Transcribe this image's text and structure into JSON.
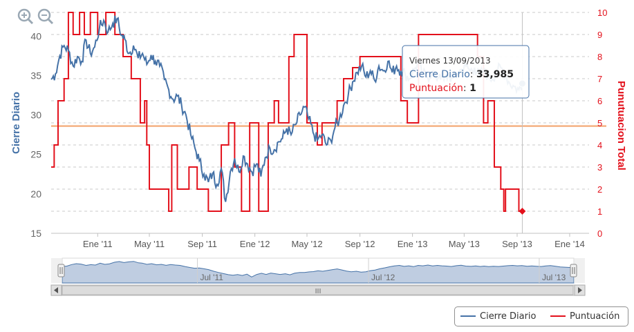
{
  "chart_data": {
    "type": "line",
    "title": "",
    "colors": {
      "cierre": "#4572a7",
      "puntuacion": "#e3101b",
      "threshold": "#f4b183",
      "y_left_label": "#4572a7",
      "y_right_label": "#e3101b"
    },
    "y_left": {
      "label": "Cierre Diario",
      "min": 15,
      "max": 43,
      "ticks": [
        15,
        20,
        25,
        30,
        35,
        40
      ]
    },
    "y_right": {
      "label": "Punutuacion Total",
      "min": 0,
      "max": 10,
      "ticks": [
        0,
        1,
        2,
        3,
        4,
        5,
        6,
        7,
        8,
        9,
        10
      ]
    },
    "x_range": [
      "2010-09-15",
      "2014-02-15"
    ],
    "x_ticks": [
      {
        "label": "Ene '11",
        "date": "2011-01-01"
      },
      {
        "label": "May '11",
        "date": "2011-05-01"
      },
      {
        "label": "Sep '11",
        "date": "2011-09-01"
      },
      {
        "label": "Ene '12",
        "date": "2012-01-01"
      },
      {
        "label": "May '12",
        "date": "2012-05-01"
      },
      {
        "label": "Sep '12",
        "date": "2012-09-01"
      },
      {
        "label": "Ene '13",
        "date": "2013-01-01"
      },
      {
        "label": "May '13",
        "date": "2013-05-01"
      },
      {
        "label": "Sep '13",
        "date": "2013-09-01"
      },
      {
        "label": "Ene '14",
        "date": "2014-01-01"
      }
    ],
    "threshold_line": 28.6,
    "series": [
      {
        "name": "Cierre Diario",
        "points": [
          [
            "2010-09-15",
            34.5
          ],
          [
            "2010-09-25",
            35.2
          ],
          [
            "2010-10-05",
            37.5
          ],
          [
            "2010-10-15",
            38.8
          ],
          [
            "2010-10-25",
            38.2
          ],
          [
            "2010-11-05",
            36.2
          ],
          [
            "2010-11-15",
            37.4
          ],
          [
            "2010-11-25",
            36.8
          ],
          [
            "2010-12-05",
            39.5
          ],
          [
            "2010-12-15",
            37.8
          ],
          [
            "2010-12-25",
            38.6
          ],
          [
            "2011-01-05",
            41.0
          ],
          [
            "2011-01-15",
            42.0
          ],
          [
            "2011-01-25",
            40.5
          ],
          [
            "2011-02-05",
            41.6
          ],
          [
            "2011-02-15",
            42.2
          ],
          [
            "2011-02-25",
            40.1
          ],
          [
            "2011-03-05",
            39.6
          ],
          [
            "2011-03-15",
            37.8
          ],
          [
            "2011-03-25",
            38.8
          ],
          [
            "2011-04-05",
            37.2
          ],
          [
            "2011-04-15",
            37.8
          ],
          [
            "2011-04-25",
            36.4
          ],
          [
            "2011-05-05",
            37.6
          ],
          [
            "2011-05-15",
            36.8
          ],
          [
            "2011-05-25",
            36.2
          ],
          [
            "2011-06-05",
            34.5
          ],
          [
            "2011-06-15",
            33.2
          ],
          [
            "2011-06-25",
            32.0
          ],
          [
            "2011-07-05",
            32.4
          ],
          [
            "2011-07-15",
            31.2
          ],
          [
            "2011-07-25",
            30.0
          ],
          [
            "2011-08-05",
            27.5
          ],
          [
            "2011-08-15",
            25.8
          ],
          [
            "2011-08-25",
            24.2
          ],
          [
            "2011-09-05",
            22.5
          ],
          [
            "2011-09-15",
            21.5
          ],
          [
            "2011-09-25",
            22.6
          ],
          [
            "2011-10-05",
            21.2
          ],
          [
            "2011-10-15",
            23.2
          ],
          [
            "2011-10-25",
            19.0
          ],
          [
            "2011-11-05",
            22.8
          ],
          [
            "2011-11-15",
            24.5
          ],
          [
            "2011-11-25",
            22.8
          ],
          [
            "2011-12-05",
            24.8
          ],
          [
            "2011-12-15",
            23.8
          ],
          [
            "2011-12-25",
            22.8
          ],
          [
            "2012-01-05",
            23.8
          ],
          [
            "2012-01-15",
            22.2
          ],
          [
            "2012-01-25",
            24.6
          ],
          [
            "2012-02-05",
            25.8
          ],
          [
            "2012-02-15",
            25.6
          ],
          [
            "2012-02-25",
            26.6
          ],
          [
            "2012-03-05",
            27.0
          ],
          [
            "2012-03-15",
            28.3
          ],
          [
            "2012-03-25",
            27.5
          ],
          [
            "2012-04-05",
            28.8
          ],
          [
            "2012-04-15",
            30.0
          ],
          [
            "2012-04-25",
            31.0
          ],
          [
            "2012-05-05",
            29.5
          ],
          [
            "2012-05-15",
            27.8
          ],
          [
            "2012-05-25",
            26.8
          ],
          [
            "2012-06-05",
            27.5
          ],
          [
            "2012-06-15",
            26.2
          ],
          [
            "2012-06-25",
            26.8
          ],
          [
            "2012-07-05",
            28.4
          ],
          [
            "2012-07-15",
            29.4
          ],
          [
            "2012-07-25",
            31.2
          ],
          [
            "2012-08-05",
            32.6
          ],
          [
            "2012-08-15",
            34.2
          ],
          [
            "2012-08-25",
            35.4
          ],
          [
            "2012-09-05",
            36.2
          ],
          [
            "2012-09-15",
            34.8
          ],
          [
            "2012-09-25",
            35.6
          ],
          [
            "2012-10-05",
            34.4
          ],
          [
            "2012-10-15",
            36.2
          ],
          [
            "2012-10-25",
            35.6
          ],
          [
            "2012-11-05",
            36.8
          ],
          [
            "2012-11-15",
            35.4
          ],
          [
            "2012-11-25",
            36.2
          ],
          [
            "2012-12-05",
            35.6
          ],
          [
            "2012-12-15",
            35.2
          ],
          [
            "2012-12-25",
            34.6
          ],
          [
            "2013-01-05",
            35.8
          ],
          [
            "2013-01-15",
            36.6
          ],
          [
            "2013-01-25",
            35.2
          ],
          [
            "2013-02-05",
            34.8
          ],
          [
            "2013-02-15",
            35.4
          ],
          [
            "2013-02-25",
            34.6
          ],
          [
            "2013-03-05",
            35.2
          ],
          [
            "2013-03-15",
            34.4
          ],
          [
            "2013-03-25",
            35.0
          ],
          [
            "2013-04-05",
            34.6
          ],
          [
            "2013-04-15",
            35.2
          ],
          [
            "2013-04-25",
            35.8
          ],
          [
            "2013-05-05",
            36.2
          ],
          [
            "2013-05-15",
            35.6
          ],
          [
            "2013-05-25",
            36.0
          ],
          [
            "2013-06-05",
            35.0
          ],
          [
            "2013-06-15",
            35.5
          ],
          [
            "2013-06-25",
            35.0
          ],
          [
            "2013-07-05",
            34.6
          ],
          [
            "2013-07-15",
            35.5
          ],
          [
            "2013-07-25",
            36.0
          ],
          [
            "2013-08-05",
            35.0
          ],
          [
            "2013-08-15",
            34.0
          ],
          [
            "2013-08-25",
            33.6
          ],
          [
            "2013-09-05",
            33.2
          ],
          [
            "2013-09-13",
            33.985
          ]
        ]
      },
      {
        "name": "Puntuación",
        "step": true,
        "points": [
          [
            "2010-09-15",
            3
          ],
          [
            "2010-09-22",
            4
          ],
          [
            "2010-10-01",
            6
          ],
          [
            "2010-10-15",
            7
          ],
          [
            "2010-10-25",
            10
          ],
          [
            "2010-11-05",
            9
          ],
          [
            "2010-11-20",
            10
          ],
          [
            "2010-12-01",
            9
          ],
          [
            "2010-12-15",
            10
          ],
          [
            "2011-01-01",
            9
          ],
          [
            "2011-01-20",
            10
          ],
          [
            "2011-02-10",
            9
          ],
          [
            "2011-03-01",
            8
          ],
          [
            "2011-03-20",
            7
          ],
          [
            "2011-04-10",
            5
          ],
          [
            "2011-04-20",
            6
          ],
          [
            "2011-04-25",
            4
          ],
          [
            "2011-05-01",
            2
          ],
          [
            "2011-06-15",
            1
          ],
          [
            "2011-06-22",
            4
          ],
          [
            "2011-07-05",
            2
          ],
          [
            "2011-08-01",
            3
          ],
          [
            "2011-08-20",
            2
          ],
          [
            "2011-09-15",
            1
          ],
          [
            "2011-10-15",
            4
          ],
          [
            "2011-11-01",
            5
          ],
          [
            "2011-11-15",
            3
          ],
          [
            "2011-12-01",
            1
          ],
          [
            "2011-12-20",
            5
          ],
          [
            "2012-01-10",
            1
          ],
          [
            "2012-02-01",
            5
          ],
          [
            "2012-02-15",
            6
          ],
          [
            "2012-02-25",
            5
          ],
          [
            "2012-03-20",
            8
          ],
          [
            "2012-04-01",
            9
          ],
          [
            "2012-05-01",
            5
          ],
          [
            "2012-05-25",
            4
          ],
          [
            "2012-06-05",
            5
          ],
          [
            "2012-06-20",
            5
          ],
          [
            "2012-07-10",
            6
          ],
          [
            "2012-07-25",
            7
          ],
          [
            "2012-08-15",
            7.5
          ],
          [
            "2012-09-01",
            8
          ],
          [
            "2012-12-05",
            6
          ],
          [
            "2012-12-20",
            5
          ],
          [
            "2013-01-15",
            9
          ],
          [
            "2013-02-01",
            9
          ],
          [
            "2013-04-15",
            9
          ],
          [
            "2013-05-15",
            9
          ],
          [
            "2013-06-01",
            8
          ],
          [
            "2013-06-15",
            5
          ],
          [
            "2013-06-25",
            6
          ],
          [
            "2013-07-10",
            3
          ],
          [
            "2013-07-25",
            2
          ],
          [
            "2013-08-01",
            1
          ],
          [
            "2013-08-05",
            2
          ],
          [
            "2013-09-05",
            1
          ]
        ]
      }
    ],
    "legend": {
      "position": "bottom-right",
      "items": [
        "Cierre Diario",
        "Puntuación"
      ]
    },
    "tooltip": {
      "date": "Viernes 13/09/2013",
      "line1_label": "Cierre Diario",
      "line1_value": "33,985",
      "line2_label": "Puntuación",
      "line2_value": "1"
    },
    "navigator": {
      "ticks": [
        "Jul '11",
        "Jul '12",
        "Jul '13"
      ],
      "scroll_grip": "III"
    }
  },
  "icons": {
    "zoom_in": "zoom-in-icon",
    "zoom_out": "zoom-out-icon"
  }
}
